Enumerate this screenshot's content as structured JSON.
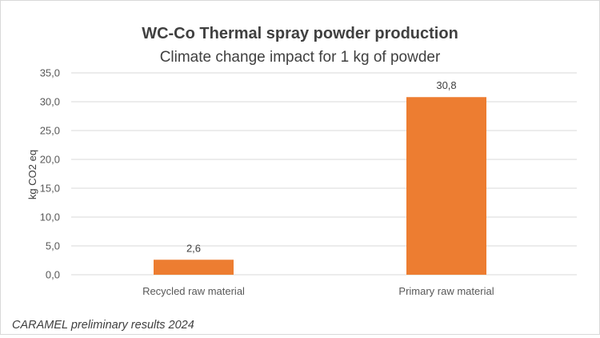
{
  "chart_data": {
    "type": "bar",
    "title": "WC-Co Thermal spray powder production",
    "subtitle": "Climate change impact for 1 kg of powder",
    "xlabel": "",
    "ylabel": "kg CO2 eq",
    "categories": [
      "Recycled raw material",
      "Primary raw material"
    ],
    "values": [
      2.6,
      30.8
    ],
    "value_labels": [
      "2,6",
      "30,8"
    ],
    "ylim": [
      0,
      35
    ],
    "yticks": [
      0,
      5,
      10,
      15,
      20,
      25,
      30,
      35
    ],
    "ytick_labels": [
      "0,0",
      "5,0",
      "10,0",
      "15,0",
      "20,0",
      "25,0",
      "30,0",
      "35,0"
    ],
    "grid": true,
    "bar_color": "#ED7D31",
    "footnote": "CARAMEL preliminary results 2024"
  }
}
